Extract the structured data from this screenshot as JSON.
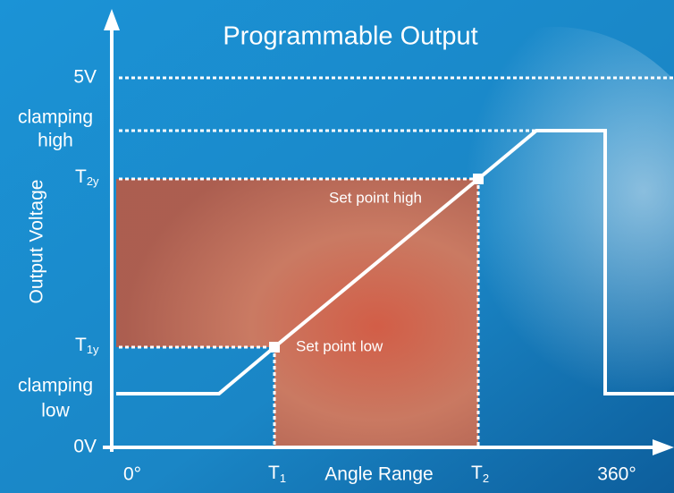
{
  "title": "Programmable Output",
  "y_axis": {
    "label": "Output Voltage",
    "levels": {
      "v5": "5V",
      "clamping_high": [
        "clamping",
        "high"
      ],
      "t2y": {
        "base": "T",
        "sub": "2y"
      },
      "t1y": {
        "base": "T",
        "sub": "1y"
      },
      "clamping_low": [
        "clamping",
        "low"
      ],
      "v0": "0V"
    }
  },
  "x_axis": {
    "label": "Angle Range",
    "start": "0°",
    "t1": {
      "base": "T",
      "sub": "1"
    },
    "t2": {
      "base": "T",
      "sub": "2"
    },
    "end": "360°"
  },
  "annotations": {
    "set_point_high": "Set point high",
    "set_point_low": "Set point low"
  }
}
